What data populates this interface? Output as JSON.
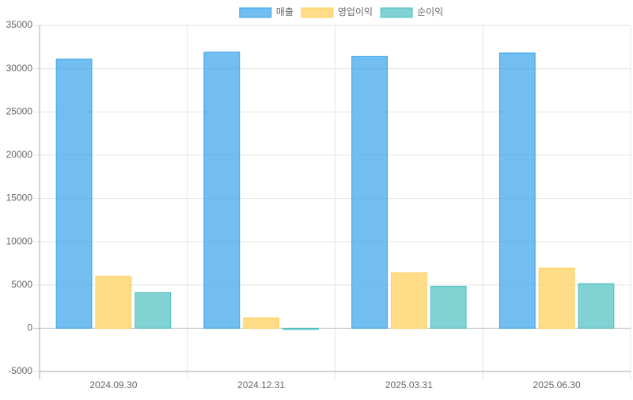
{
  "chart_data": {
    "type": "bar",
    "categories": [
      "2024.09.30",
      "2024.12.31",
      "2025.03.31",
      "2025.06.30"
    ],
    "series": [
      {
        "name": "매출",
        "color": "rgba(54,162,235,0.7)",
        "border_color": "#36a2eb",
        "values": [
          31100,
          31900,
          31400,
          31800
        ]
      },
      {
        "name": "영업이익",
        "color": "rgba(255,206,86,0.7)",
        "border_color": "#ffce56",
        "values": [
          6000,
          1200,
          6400,
          6950
        ]
      },
      {
        "name": "순이익",
        "color": "rgba(75,192,192,0.7)",
        "border_color": "#4bc0c0",
        "values": [
          4100,
          -150,
          4850,
          5150
        ]
      }
    ],
    "ylim": [
      -5000,
      35000
    ],
    "yticks": [
      -5000,
      0,
      5000,
      10000,
      15000,
      20000,
      25000,
      30000,
      35000
    ],
    "grid": true
  }
}
